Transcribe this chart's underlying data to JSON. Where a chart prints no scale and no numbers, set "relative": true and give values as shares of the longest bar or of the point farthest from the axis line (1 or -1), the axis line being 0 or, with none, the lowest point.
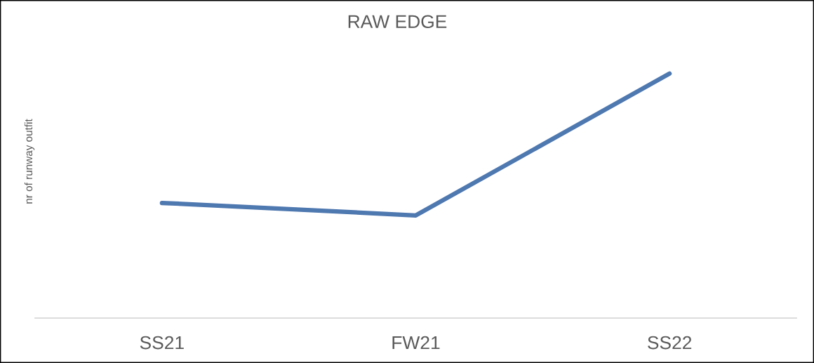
{
  "chart_data": {
    "type": "line",
    "title": "RAW EDGE",
    "ylabel": "nr of runway outfit",
    "relative": true,
    "categories": [
      "SS21",
      "FW21",
      "SS22"
    ],
    "series": [
      {
        "color": "#4e78b0",
        "values": [
          0.471,
          0.42,
          1
        ]
      }
    ]
  }
}
